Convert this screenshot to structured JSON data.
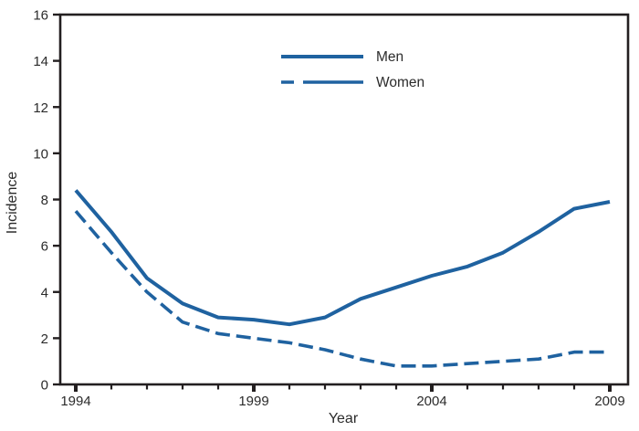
{
  "figure": {
    "background": "#ffffff",
    "line_color": "#1f62a0",
    "axis_color": "#231f20",
    "text_color": "#2b2b2b"
  },
  "chart_data": {
    "type": "line",
    "title": "",
    "xlabel": "Year",
    "ylabel": "Incidence",
    "x": [
      1994,
      1995,
      1996,
      1997,
      1998,
      1999,
      2000,
      2001,
      2002,
      2003,
      2004,
      2005,
      2006,
      2007,
      2008,
      2009
    ],
    "series": [
      {
        "name": "Men",
        "style": "solid",
        "values": [
          8.4,
          6.6,
          4.6,
          3.5,
          2.9,
          2.8,
          2.6,
          2.9,
          3.7,
          4.2,
          4.7,
          5.1,
          5.7,
          6.6,
          7.6,
          7.9
        ]
      },
      {
        "name": "Women",
        "style": "dashed",
        "values": [
          7.5,
          5.7,
          4.0,
          2.7,
          2.2,
          2.0,
          1.8,
          1.5,
          1.1,
          0.8,
          0.8,
          0.9,
          1.0,
          1.1,
          1.4,
          1.4
        ]
      }
    ],
    "ylim": [
      0,
      16
    ],
    "yticks": [
      0,
      2,
      4,
      6,
      8,
      10,
      12,
      14,
      16
    ],
    "xticks_labeled": [
      1994,
      1999,
      2004,
      2009
    ],
    "xticks_minor_every": 1,
    "grid": false,
    "legend_position": "top-center"
  }
}
